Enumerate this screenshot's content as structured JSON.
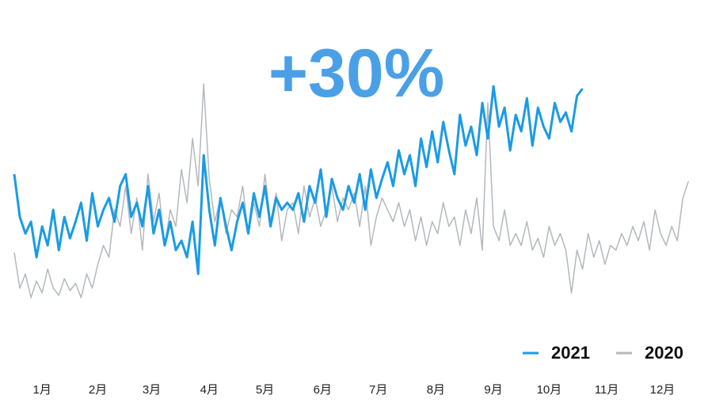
{
  "chart_data": {
    "type": "line",
    "title": "+30%",
    "xlim": [
      0,
      365
    ],
    "ylim": [
      0,
      100
    ],
    "xticks": [
      {
        "value": 15,
        "label": "1月"
      },
      {
        "value": 45,
        "label": "2月"
      },
      {
        "value": 74,
        "label": "3月"
      },
      {
        "value": 105,
        "label": "4月"
      },
      {
        "value": 135,
        "label": "5月"
      },
      {
        "value": 166,
        "label": "6月"
      },
      {
        "value": 196,
        "label": "7月"
      },
      {
        "value": 227,
        "label": "8月"
      },
      {
        "value": 258,
        "label": "9月"
      },
      {
        "value": 288,
        "label": "10月"
      },
      {
        "value": 319,
        "label": "11月"
      },
      {
        "value": 349,
        "label": "12月"
      }
    ],
    "grid": false,
    "series": [
      {
        "name": "2021",
        "color": "#1a9be6",
        "x": [
          0,
          3,
          6,
          9,
          12,
          15,
          18,
          21,
          24,
          27,
          30,
          33,
          36,
          39,
          42,
          45,
          48,
          51,
          54,
          57,
          60,
          63,
          66,
          69,
          72,
          75,
          78,
          81,
          84,
          87,
          90,
          93,
          96,
          99,
          102,
          105,
          108,
          111,
          114,
          117,
          120,
          123,
          126,
          129,
          132,
          135,
          138,
          141,
          144,
          147,
          150,
          153,
          156,
          159,
          162,
          165,
          168,
          171,
          174,
          177,
          180,
          183,
          186,
          189,
          192,
          195,
          198,
          201,
          204,
          207,
          210,
          213,
          216,
          219,
          222,
          225,
          228,
          231,
          234,
          237,
          240,
          243,
          246,
          249,
          252,
          255,
          258,
          261,
          264,
          267,
          270,
          273,
          276,
          279,
          282,
          285,
          288,
          291,
          294,
          297,
          300,
          303,
          306
        ],
        "values": [
          60,
          42,
          35,
          40,
          25,
          38,
          30,
          45,
          28,
          42,
          33,
          40,
          48,
          32,
          52,
          38,
          45,
          50,
          40,
          55,
          60,
          42,
          48,
          38,
          55,
          35,
          45,
          30,
          40,
          28,
          32,
          25,
          40,
          18,
          68,
          45,
          30,
          50,
          38,
          28,
          40,
          48,
          35,
          52,
          42,
          55,
          38,
          50,
          45,
          48,
          45,
          52,
          40,
          55,
          48,
          62,
          42,
          58,
          50,
          45,
          55,
          48,
          60,
          45,
          62,
          50,
          58,
          65,
          55,
          70,
          60,
          68,
          55,
          75,
          63,
          78,
          65,
          82,
          70,
          60,
          85,
          72,
          80,
          68,
          90,
          75,
          97,
          80,
          88,
          70,
          85,
          78,
          92,
          72,
          88,
          80,
          75,
          90,
          82,
          86,
          78,
          93,
          96
        ]
      },
      {
        "name": "2020",
        "color": "#b3b8bd",
        "x": [
          0,
          3,
          6,
          9,
          12,
          15,
          18,
          21,
          24,
          27,
          30,
          33,
          36,
          39,
          42,
          45,
          48,
          51,
          54,
          57,
          60,
          63,
          66,
          69,
          72,
          75,
          78,
          81,
          84,
          87,
          90,
          93,
          96,
          99,
          102,
          105,
          108,
          111,
          114,
          117,
          120,
          123,
          126,
          129,
          132,
          135,
          138,
          141,
          144,
          147,
          150,
          153,
          156,
          159,
          162,
          165,
          168,
          171,
          174,
          177,
          180,
          183,
          186,
          189,
          192,
          195,
          198,
          201,
          204,
          207,
          210,
          213,
          216,
          219,
          222,
          225,
          228,
          231,
          234,
          237,
          240,
          243,
          246,
          249,
          252,
          255,
          258,
          261,
          264,
          267,
          270,
          273,
          276,
          279,
          282,
          285,
          288,
          291,
          294,
          297,
          300,
          303,
          306,
          309,
          312,
          315,
          318,
          321,
          324,
          327,
          330,
          333,
          336,
          339,
          342,
          345,
          348,
          351,
          354,
          357,
          360,
          363
        ],
        "values": [
          27,
          12,
          18,
          8,
          15,
          10,
          20,
          12,
          9,
          16,
          11,
          14,
          8,
          18,
          12,
          22,
          30,
          25,
          45,
          38,
          55,
          35,
          50,
          28,
          60,
          40,
          52,
          30,
          45,
          38,
          62,
          48,
          75,
          55,
          98,
          58,
          40,
          50,
          35,
          45,
          42,
          55,
          35,
          48,
          38,
          60,
          40,
          52,
          32,
          45,
          48,
          35,
          55,
          42,
          50,
          38,
          45,
          55,
          40,
          50,
          45,
          52,
          38,
          55,
          30,
          42,
          50,
          45,
          40,
          48,
          38,
          45,
          32,
          42,
          30,
          40,
          35,
          48,
          38,
          42,
          30,
          45,
          35,
          50,
          28,
          90,
          38,
          32,
          45,
          30,
          35,
          30,
          40,
          28,
          33,
          25,
          38,
          30,
          35,
          28,
          10,
          28,
          20,
          35,
          25,
          32,
          22,
          30,
          28,
          35,
          30,
          38,
          32,
          40,
          28,
          45,
          35,
          30,
          38,
          32,
          50,
          57
        ]
      }
    ]
  }
}
